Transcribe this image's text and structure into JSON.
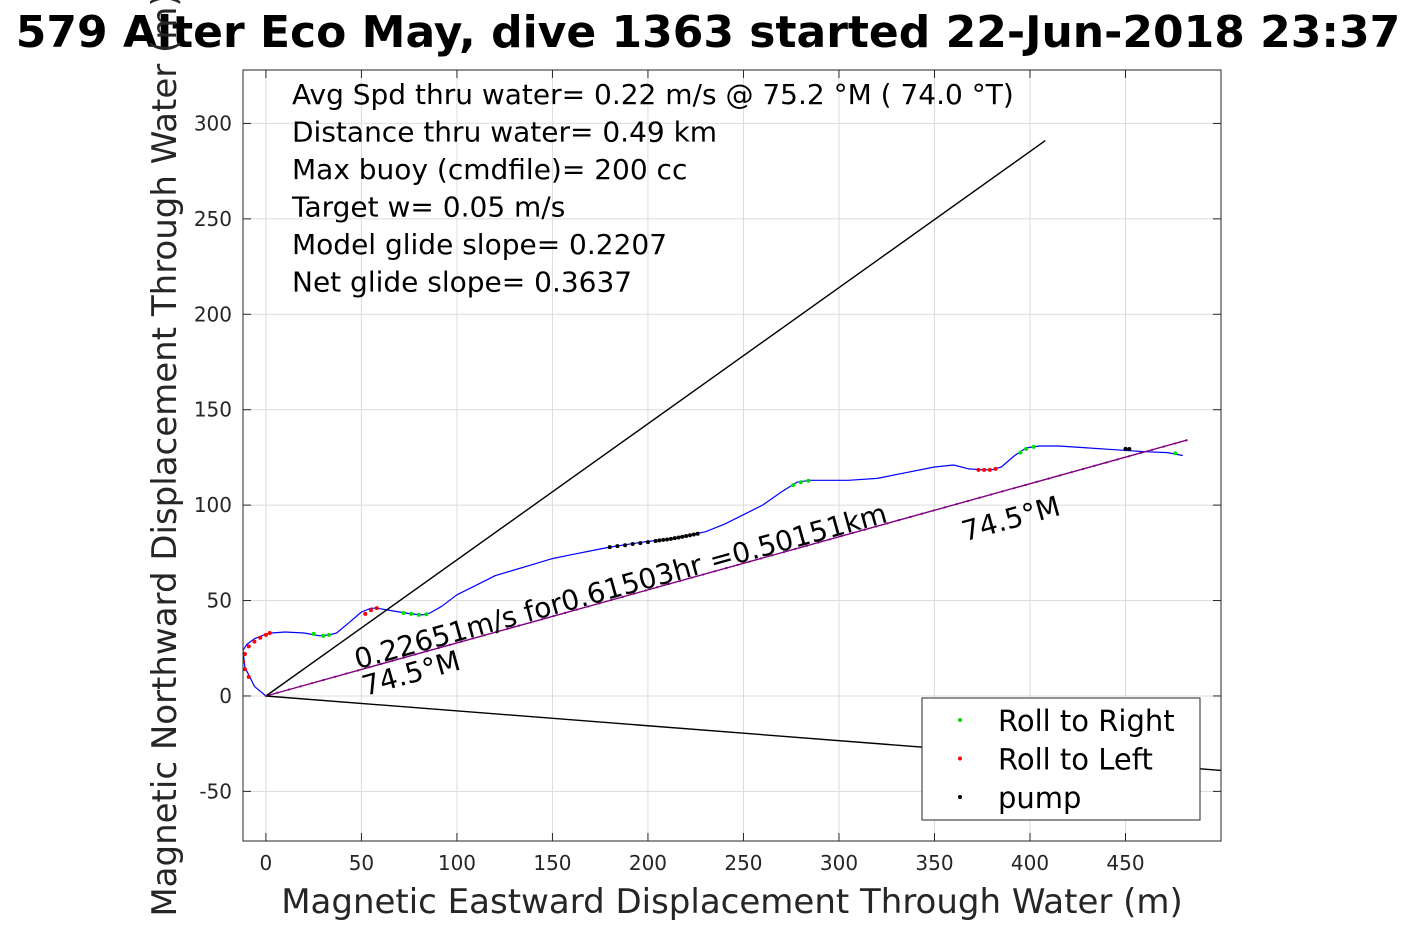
{
  "chart_data": {
    "type": "line",
    "title": "579 Alter Eco May, dive 1363 started 22-Jun-2018 23:37",
    "xlabel": "Magnetic Eastward Displacement Through Water (m)",
    "ylabel": "Magnetic Northward Displacement Through Water (m)",
    "xlim": [
      -12,
      500
    ],
    "ylim": [
      -76,
      328
    ],
    "xticks": [
      0,
      50,
      100,
      150,
      200,
      250,
      300,
      350,
      400,
      450
    ],
    "yticks": [
      -50,
      0,
      50,
      100,
      150,
      200,
      250,
      300
    ],
    "xtick_labels": [
      "0",
      "50",
      "100",
      "150",
      "200",
      "250",
      "300",
      "350",
      "400",
      "450"
    ],
    "ytick_labels": [
      "-50",
      "0",
      "50",
      "100",
      "150",
      "200",
      "250",
      "300"
    ],
    "grid": true,
    "annotations": [
      "Avg Spd thru water=  0.22 m/s @  75.2 °M ( 74.0 °T)",
      "Distance thru water=  0.49 km",
      "Max buoy (cmdfile)= 200 cc",
      "Target w= 0.05 m/s",
      "Model glide slope= 0.2207",
      "Net glide slope= 0.3637"
    ],
    "current_label": "0.22651m/s for0.61503hr =0.50151km",
    "heading_label_start": "74.5°M",
    "heading_label_end": "74.5°M",
    "legend": {
      "placement": "bottom-right",
      "entries": [
        {
          "label": "Roll to Right",
          "color": "#00e000"
        },
        {
          "label": "Roll to Left",
          "color": "#ff0000"
        },
        {
          "label": "pump",
          "color": "#000000"
        }
      ]
    },
    "series": [
      {
        "role": "track",
        "color": "#0000ff",
        "x": [
          0,
          -6,
          -11,
          -12,
          -10,
          -6,
          -1,
          3,
          10,
          20,
          28,
          33,
          37,
          43,
          50,
          55,
          58,
          64,
          70,
          76,
          82,
          86,
          92,
          100,
          110,
          120,
          130,
          140,
          150,
          160,
          170,
          180,
          190,
          200,
          210,
          220,
          230,
          240,
          250,
          260,
          270,
          278,
          285,
          295,
          305,
          320,
          335,
          350,
          360,
          368,
          375,
          380,
          385,
          392,
          398,
          405,
          415,
          430,
          445,
          460,
          472,
          480
        ],
        "y": [
          0,
          5,
          15,
          24,
          27,
          30,
          32,
          33,
          33.5,
          33,
          31.5,
          32,
          33,
          38,
          44,
          46,
          46,
          45,
          44,
          43,
          42.5,
          43.5,
          47,
          53,
          58,
          63,
          66,
          69,
          72,
          74,
          76,
          78,
          79.5,
          81,
          82,
          84,
          86,
          90,
          95,
          100,
          107,
          112,
          113,
          113,
          113,
          114,
          117,
          120,
          121,
          119,
          118.5,
          118.5,
          120,
          126,
          130,
          131,
          131,
          130,
          129,
          128,
          127.5,
          126
        ]
      },
      {
        "role": "current-segment",
        "color": "#800080",
        "x": [
          0,
          482
        ],
        "y": [
          0,
          134
        ]
      },
      {
        "role": "glide-reference-upper",
        "color": "#000000",
        "x": [
          0,
          408
        ],
        "y": [
          0,
          291
        ]
      },
      {
        "role": "glide-reference-lower",
        "color": "#000000",
        "x": [
          0,
          500
        ],
        "y": [
          0,
          -39
        ]
      }
    ],
    "markers": {
      "roll_right": {
        "color": "#00e000",
        "x": [
          25,
          30,
          33,
          72,
          76,
          80,
          84,
          276,
          280,
          284,
          395,
          398,
          402,
          476
        ],
        "y": [
          32.5,
          31.5,
          32,
          43.5,
          43,
          42.5,
          42.8,
          110.5,
          112,
          112.8,
          127.5,
          129.5,
          130.5,
          127.2
        ]
      },
      "roll_left": {
        "color": "#ff0000",
        "x": [
          -9,
          -11,
          -12,
          -11,
          -9,
          -6,
          -3,
          0,
          2,
          52,
          55,
          58,
          373,
          376,
          379,
          382
        ],
        "y": [
          10,
          14,
          18,
          22,
          26,
          28.5,
          30.5,
          32,
          33,
          43,
          45,
          46,
          118.5,
          118.5,
          118.5,
          119
        ],
        "hidden_by_track_x": [],
        "hidden_by_track_y": []
      },
      "pump": {
        "color": "#000000",
        "x": [
          180,
          184,
          188,
          192,
          196,
          200,
          204,
          206,
          208,
          210,
          212,
          214,
          216,
          218,
          220,
          222,
          224,
          226,
          450,
          452
        ],
        "y": [
          78,
          78.5,
          79,
          79.6,
          80.1,
          80.6,
          81.2,
          81.5,
          81.8,
          82,
          82.3,
          82.7,
          83,
          83.4,
          83.8,
          84.2,
          84.6,
          85,
          129.5,
          129.4
        ]
      }
    }
  }
}
